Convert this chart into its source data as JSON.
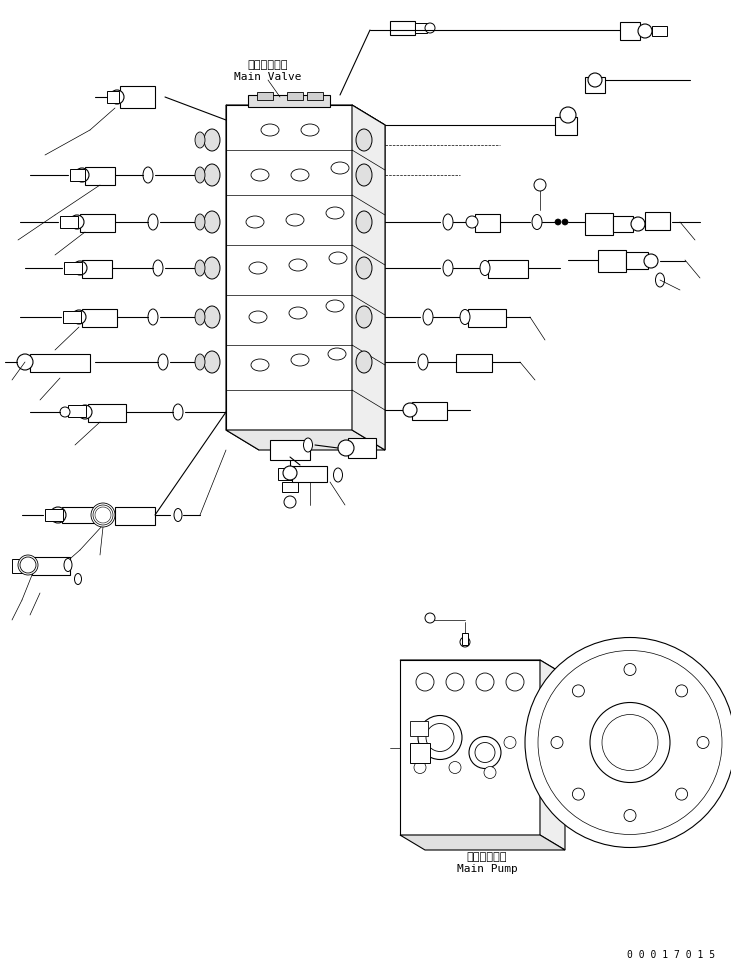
{
  "title": "",
  "background_color": "#ffffff",
  "line_color": "#000000",
  "label_main_valve_jp": "メインバルブ",
  "label_main_valve_en": "Main Valve",
  "label_main_pump_jp": "メインポンプ",
  "label_main_pump_en": "Main Pump",
  "serial_number": "0 0 0 1 7 0 1 5",
  "figsize": [
    7.31,
    9.59
  ],
  "dpi": 100
}
